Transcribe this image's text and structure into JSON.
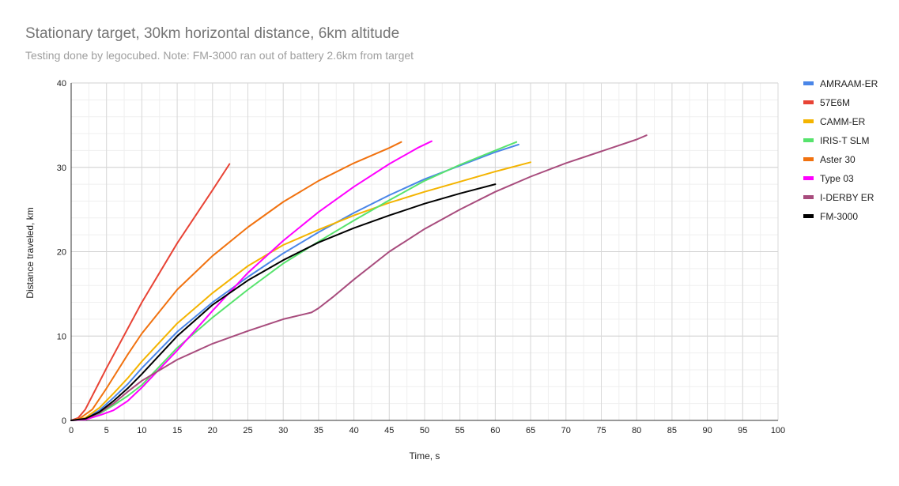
{
  "chart_data": {
    "type": "line",
    "title": "Stationary target, 30km horizontal distance, 6km altitude",
    "subtitle": "Testing done by legocubed. Note: FM-3000 ran out of battery 2.6km from target",
    "xlabel": "Time, s",
    "ylabel": "Distance traveled, km",
    "xlim": [
      0,
      100
    ],
    "ylim": [
      0,
      40
    ],
    "xticks": [
      0,
      5,
      10,
      15,
      20,
      25,
      30,
      35,
      40,
      45,
      50,
      55,
      60,
      65,
      70,
      75,
      80,
      85,
      90,
      95,
      100
    ],
    "yticks": [
      0,
      10,
      20,
      30,
      40
    ],
    "grid": true,
    "legend_position": "right",
    "series": [
      {
        "name": "AMRAAM-ER",
        "color": "#4a86e8",
        "x": [
          0,
          2,
          4,
          6,
          8,
          10,
          15,
          20,
          25,
          30,
          35,
          40,
          45,
          50,
          55,
          60,
          63.3
        ],
        "y": [
          0,
          0.2,
          1.2,
          2.7,
          4.3,
          6.2,
          10.5,
          14.0,
          17.0,
          19.8,
          22.3,
          24.6,
          26.7,
          28.6,
          30.2,
          31.8,
          32.7
        ]
      },
      {
        "name": "57E6M",
        "color": "#e84335",
        "x": [
          0,
          1,
          2,
          5,
          10,
          15,
          20,
          22.4
        ],
        "y": [
          0,
          0.3,
          1.3,
          6.2,
          14.0,
          21.0,
          27.3,
          30.4
        ]
      },
      {
        "name": "CAMM-ER",
        "color": "#f4b400",
        "x": [
          0,
          2,
          4,
          6,
          8,
          10,
          15,
          20,
          25,
          30,
          35,
          40,
          45,
          50,
          55,
          60,
          65
        ],
        "y": [
          0,
          0.3,
          1.5,
          3.2,
          5.0,
          7.0,
          11.5,
          15.1,
          18.3,
          20.8,
          22.6,
          24.3,
          25.8,
          27.1,
          28.3,
          29.5,
          30.6
        ]
      },
      {
        "name": "IRIS-T SLM",
        "color": "#57e36d",
        "x": [
          0,
          2,
          4,
          6,
          8,
          10,
          15,
          20,
          25,
          30,
          35,
          40,
          45,
          50,
          55,
          60,
          63
        ],
        "y": [
          0,
          0.1,
          0.8,
          1.8,
          2.9,
          4.2,
          8.6,
          12.2,
          15.5,
          18.6,
          21.2,
          23.7,
          26.1,
          28.4,
          30.3,
          32.0,
          33.0
        ]
      },
      {
        "name": "Aster 30",
        "color": "#f1720f",
        "x": [
          0,
          1,
          3,
          5,
          8,
          10,
          15,
          20,
          25,
          30,
          35,
          40,
          45,
          46.7
        ],
        "y": [
          0,
          0.1,
          1.3,
          3.8,
          7.8,
          10.3,
          15.5,
          19.5,
          22.9,
          25.9,
          28.4,
          30.5,
          32.3,
          33.0
        ]
      },
      {
        "name": "Type 03",
        "color": "#ff00ff",
        "x": [
          0,
          2,
          4,
          6,
          8,
          10,
          15,
          20,
          25,
          30,
          35,
          40,
          45,
          49,
          51
        ],
        "y": [
          0,
          0.1,
          0.6,
          1.2,
          2.3,
          3.9,
          8.3,
          13.0,
          17.5,
          21.3,
          24.7,
          27.7,
          30.4,
          32.3,
          33.1
        ]
      },
      {
        "name": "I-DERBY ER",
        "color": "#a84c7d",
        "x": [
          0,
          2,
          4,
          6,
          8,
          10,
          15,
          20,
          25,
          30,
          34,
          35,
          37,
          40,
          45,
          50,
          55,
          60,
          65,
          70,
          75,
          80,
          81.4
        ],
        "y": [
          0,
          0.2,
          0.9,
          2.0,
          3.4,
          4.7,
          7.2,
          9.1,
          10.6,
          12.0,
          12.8,
          13.3,
          14.6,
          16.7,
          20.0,
          22.7,
          25.0,
          27.1,
          28.9,
          30.5,
          31.9,
          33.3,
          33.8
        ]
      },
      {
        "name": "FM-3000",
        "color": "#000000",
        "x": [
          0,
          2,
          4,
          6,
          8,
          10,
          15,
          20,
          25,
          30,
          35,
          40,
          45,
          50,
          55,
          60
        ],
        "y": [
          0,
          0.2,
          1.0,
          2.3,
          3.8,
          5.5,
          10.0,
          13.7,
          16.6,
          19.0,
          21.1,
          22.8,
          24.3,
          25.7,
          26.9,
          28.0
        ]
      }
    ]
  }
}
